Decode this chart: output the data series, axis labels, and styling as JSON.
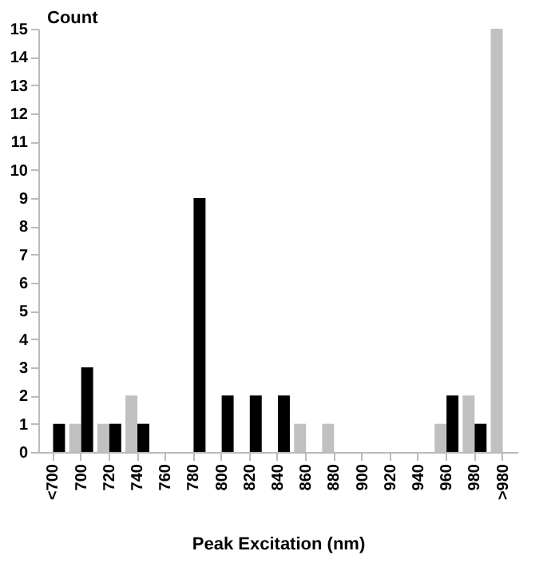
{
  "chart_data": {
    "type": "bar",
    "xlabel": "Peak Excitation (nm)",
    "ylabel": "Count",
    "categories": [
      "<700",
      "700",
      "720",
      "740",
      "760",
      "780",
      "800",
      "820",
      "840",
      "860",
      "880",
      "900",
      "920",
      "940",
      "960",
      "980",
      ">980"
    ],
    "series": [
      {
        "color": "#c0c0c0",
        "values": [
          0,
          1,
          1,
          2,
          0,
          0,
          0,
          0,
          0,
          1,
          1,
          0,
          0,
          0,
          1,
          2,
          15
        ]
      },
      {
        "color": "#000000",
        "values": [
          1,
          3,
          1,
          1,
          0,
          9,
          2,
          2,
          2,
          0,
          0,
          0,
          0,
          0,
          2,
          1,
          0
        ]
      }
    ],
    "ylim": [
      0,
      15
    ],
    "yticks": [
      0,
      1,
      2,
      3,
      4,
      5,
      6,
      7,
      8,
      9,
      10,
      11,
      12,
      13,
      14,
      15
    ],
    "grid": false,
    "legend": false
  }
}
